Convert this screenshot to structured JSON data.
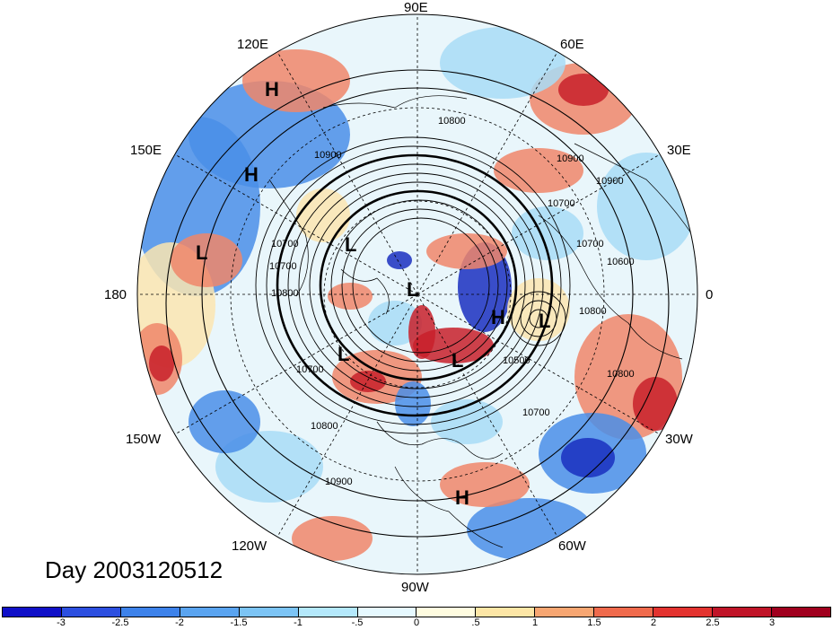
{
  "day_label": "Day 2003120512",
  "longitude_labels": {
    "lon_90e": "90E",
    "lon_60e": "60E",
    "lon_30e": "30E",
    "lon_0": "0",
    "lon_30w": "30W",
    "lon_60w": "60W",
    "lon_90w": "90W",
    "lon_120w": "120W",
    "lon_150w": "150W",
    "lon_180": "180",
    "lon_150e": "150E",
    "lon_120e": "120E"
  },
  "pressure_systems": [
    {
      "id": "h1",
      "label": "H"
    },
    {
      "id": "h2",
      "label": "H"
    },
    {
      "id": "l1",
      "label": "L"
    },
    {
      "id": "l2",
      "label": "L"
    },
    {
      "id": "l3",
      "label": "L"
    },
    {
      "id": "l4",
      "label": "L"
    },
    {
      "id": "l5",
      "label": "L"
    },
    {
      "id": "h3",
      "label": "H"
    },
    {
      "id": "l6",
      "label": "L"
    },
    {
      "id": "h4",
      "label": "H"
    }
  ],
  "contour_labels": [
    "10800",
    "10900",
    "10700",
    "10800",
    "10700",
    "10800",
    "10900",
    "10700",
    "10900",
    "10700",
    "10600",
    "10800",
    "10500",
    "10700",
    "10700",
    "10800",
    "10900"
  ],
  "colorbar": {
    "ticks": [
      "-3",
      "-2.5",
      "-2",
      "-1.5",
      "-1",
      "-.5",
      "0",
      ".5",
      "1",
      "1.5",
      "2",
      "2.5",
      "3"
    ],
    "colors": [
      "#1010c8",
      "#2c4fe0",
      "#3d82ea",
      "#5aa4f0",
      "#7cc4f5",
      "#b4e8fb",
      "#e6f9ff",
      "#fffce0",
      "#fde6a6",
      "#f7a672",
      "#ef6a4c",
      "#e3332f",
      "#c01428",
      "#a0001e"
    ]
  },
  "colors": {
    "neg_strong": "#1a2fc0",
    "neg_mid": "#4a8ee8",
    "neg_light": "#a8dcf6",
    "pos_light": "#fbe5b0",
    "pos_mid": "#f0866a",
    "pos_strong": "#c8202a"
  }
}
